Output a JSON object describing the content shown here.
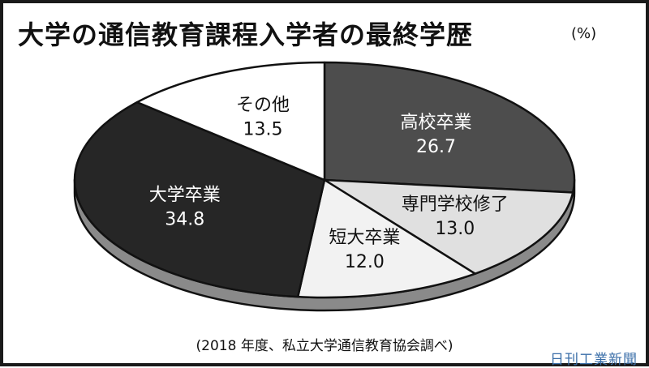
{
  "title": "大学の通信教育課程入学者の最終学歴",
  "unit": "(%)",
  "source": "(2018 年度、私立大学通信教育協会調べ)",
  "brand": "日刊工業新聞",
  "chart_data": {
    "type": "pie",
    "title": "大学の通信教育課程入学者の最終学歴",
    "unit": "(%)",
    "slices": [
      {
        "label": "高校卒業",
        "value": 26.7,
        "value_text": "26.7",
        "color": "#4d4d4d",
        "text_color": "#ffffff"
      },
      {
        "label": "専門学校修了",
        "value": 13.0,
        "value_text": "13.0",
        "color": "#e0e0e0",
        "text_color": "#111111"
      },
      {
        "label": "短大卒業",
        "value": 12.0,
        "value_text": "12.0",
        "color": "#f2f2f2",
        "text_color": "#111111"
      },
      {
        "label": "大学卒業",
        "value": 34.8,
        "value_text": "34.8",
        "color": "#262626",
        "text_color": "#ffffff"
      },
      {
        "label": "その他",
        "value": 13.5,
        "value_text": "13.5",
        "color": "#ffffff",
        "text_color": "#111111"
      }
    ]
  }
}
